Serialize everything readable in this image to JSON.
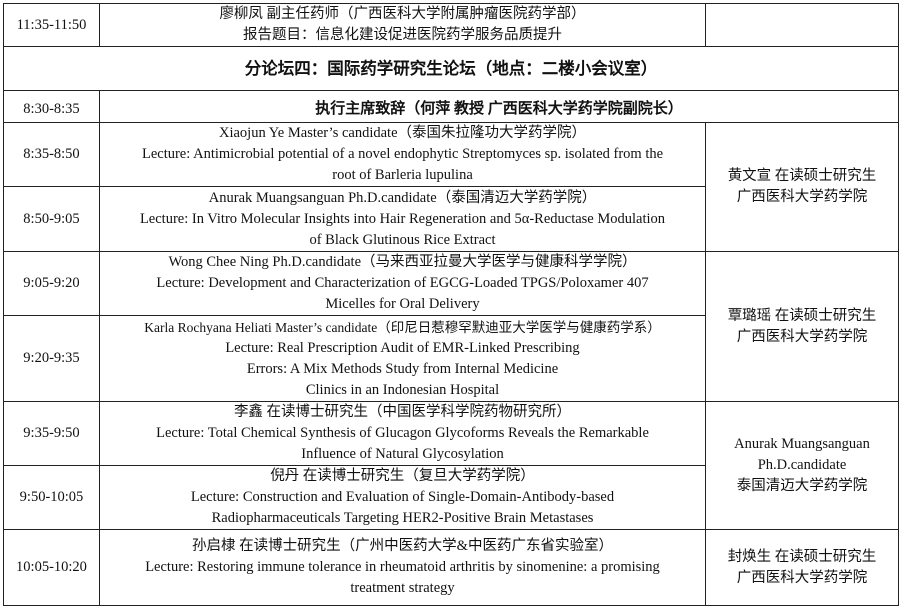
{
  "previous_session": {
    "time": "11:35-11:50",
    "lines": [
      "廖柳凤 副主任药师（广西医科大学附属肿瘤医院药学部）",
      "报告题目：信息化建设促进医院药学服务品质提升"
    ],
    "host": ""
  },
  "section_title": "分论坛四：国际药学研究生论坛（地点：二楼小会议室）",
  "opening": {
    "time": "8:30-8:35",
    "text": "执行主席致辞（何萍 教授 广西医科大学药学院副院长）"
  },
  "talks": [
    {
      "time": "8:35-8:50",
      "lines": [
        "Xiaojun Ye    Master’s candidate（泰国朱拉隆功大学药学院）",
        "Lecture: Antimicrobial potential of a novel endophytic Streptomyces sp. isolated from the",
        "root of Barleria lupulina"
      ]
    },
    {
      "time": "8:50-9:05",
      "lines": [
        "Anurak Muangsanguan    Ph.D.candidate（泰国清迈大学药学院）",
        "Lecture: In Vitro Molecular Insights into Hair Regeneration and 5α-Reductase Modulation",
        "of Black Glutinous Rice Extract"
      ]
    },
    {
      "time": "9:05-9:20",
      "lines": [
        "Wong Chee Ning    Ph.D.candidate（马来西亚拉曼大学医学与健康科学学院）",
        "Lecture: Development and Characterization of EGCG-Loaded TPGS/Poloxamer 407",
        "Micelles for Oral Delivery"
      ]
    },
    {
      "time": "9:20-9:35",
      "lines": [
        "Karla Rochyana Heliati    Master’s candidate（印尼日惹穆罕默迪亚大学医学与健康药学系）",
        "Lecture: Real Prescription Audit of EMR-Linked Prescribing",
        "Errors: A Mix Methods Study from Internal Medicine",
        "Clinics in an Indonesian Hospital"
      ]
    },
    {
      "time": "9:35-9:50",
      "lines": [
        "李鑫 在读博士研究生（中国医学科学院药物研究所）",
        "Lecture: Total Chemical Synthesis of Glucagon Glycoforms Reveals the Remarkable",
        "Influence of Natural Glycosylation"
      ]
    },
    {
      "time": "9:50-10:05",
      "lines": [
        "倪丹 在读博士研究生（复旦大学药学院）",
        "Lecture: Construction and Evaluation of Single-Domain-Antibody-based",
        "Radiopharmaceuticals Targeting HER2-Positive Brain Metastases"
      ]
    },
    {
      "time": "10:05-10:20",
      "lines": [
        "孙启棣 在读博士研究生（广州中医药大学&中医药广东省实验室）",
        "Lecture: Restoring immune tolerance in rheumatoid arthritis by sinomenine: a promising",
        "treatment strategy"
      ]
    }
  ],
  "hosts": [
    {
      "lines": [
        "黄文宣 在读硕士研究生",
        "广西医科大学药学院"
      ]
    },
    {
      "lines": [
        "覃璐瑶 在读硕士研究生",
        "广西医科大学药学院"
      ]
    },
    {
      "lines": [
        "Anurak Muangsanguan",
        "Ph.D.candidate",
        "泰国清迈大学药学院"
      ]
    },
    {
      "lines": [
        "封焕生 在读硕士研究生",
        "广西医科大学药学院"
      ]
    }
  ]
}
